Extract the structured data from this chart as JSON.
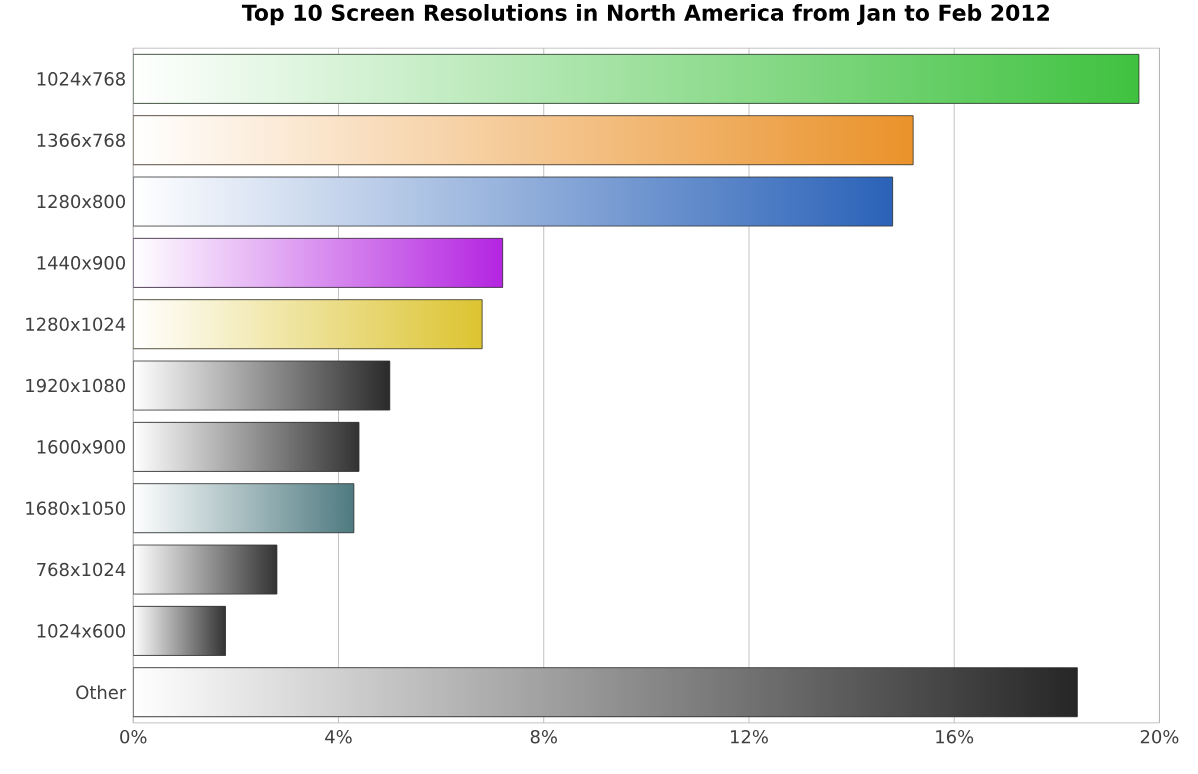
{
  "chart_data": {
    "type": "bar",
    "orientation": "horizontal",
    "title": "Top 10 Screen Resolutions in North America from Jan to Feb 2012",
    "categories": [
      "1024x768",
      "1366x768",
      "1280x800",
      "1440x900",
      "1280x1024",
      "1920x1080",
      "1600x900",
      "1680x1050",
      "768x1024",
      "1024x600",
      "Other"
    ],
    "values": [
      19.6,
      15.2,
      14.8,
      7.2,
      6.8,
      5.0,
      4.4,
      4.3,
      2.8,
      1.8,
      18.4
    ],
    "colors": [
      "#3fc23f",
      "#ea922a",
      "#2a62b8",
      "#b424e0",
      "#dcc430",
      "#2a2a2a",
      "#333333",
      "#4e7a80",
      "#333333",
      "#333333",
      "#262626"
    ],
    "xlim": [
      0,
      20
    ],
    "xticks": [
      {
        "value": 0,
        "label": "0%"
      },
      {
        "value": 4,
        "label": "4%"
      },
      {
        "value": 8,
        "label": "8%"
      },
      {
        "value": 12,
        "label": "12%"
      },
      {
        "value": 16,
        "label": "16%"
      },
      {
        "value": 20,
        "label": "20%"
      }
    ],
    "grid": "x"
  }
}
